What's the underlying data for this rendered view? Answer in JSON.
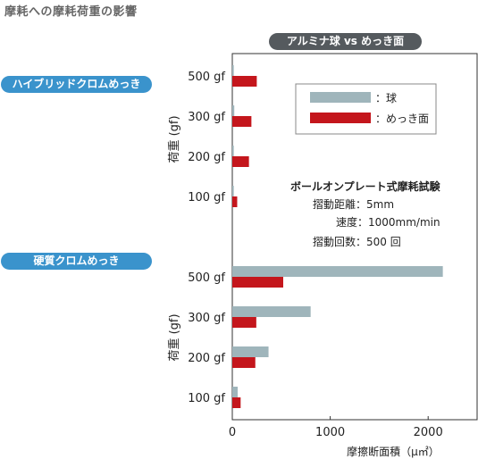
{
  "page_title": "摩耗への摩耗荷重の影響",
  "header_badge": "アルミナ球 vs めっき面",
  "panel_labels": [
    "ハイブリッドクロムめっき",
    "硬質クロムめっき"
  ],
  "colors": {
    "ball": "#9fb5bb",
    "plating": "#c4161c",
    "pill_blue": "#3a93cc",
    "pill_dark": "#555a5e"
  },
  "annotation": {
    "title": "ボールオンプレート式摩耗試験",
    "lines": [
      "摺動距離：5mm",
      "速度：1000mm/min",
      "摺動回数：500 回"
    ]
  },
  "chart_data": {
    "type": "bar",
    "orientation": "horizontal",
    "xlabel": "摩擦断面積（μ㎡）",
    "ylabel": "荷重 (gf)",
    "xlim": [
      0,
      2500
    ],
    "xticks": [
      0,
      1000,
      2000
    ],
    "categories": [
      "500 gf",
      "300 gf",
      "200 gf",
      "100 gf"
    ],
    "legend": {
      "placement": "top-right",
      "entries": [
        "：球",
        "：めっき面"
      ]
    },
    "panels": [
      {
        "name": "ハイブリッドクロムめっき",
        "series": [
          {
            "name": "球",
            "values": [
              15,
              20,
              15,
              15
            ]
          },
          {
            "name": "めっき面",
            "values": [
              250,
              195,
              170,
              50
            ]
          }
        ]
      },
      {
        "name": "硬質クロムめっき",
        "series": [
          {
            "name": "球",
            "values": [
              2150,
              800,
              370,
              55
            ]
          },
          {
            "name": "めっき面",
            "values": [
              520,
              245,
              235,
              85
            ]
          }
        ]
      }
    ]
  }
}
